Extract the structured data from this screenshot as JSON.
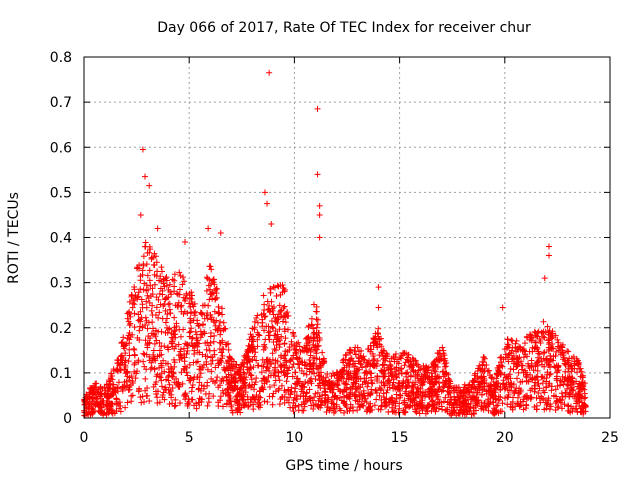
{
  "chart_data": {
    "type": "scatter",
    "title": "Day 066 of 2017, Rate Of TEC Index for receiver chur",
    "xlabel": "GPS time / hours",
    "ylabel": "ROTI / TECUs",
    "xlim": [
      0,
      25
    ],
    "ylim": [
      0,
      0.8
    ],
    "xticks": [
      0,
      5,
      10,
      15,
      20,
      25
    ],
    "yticks": [
      0,
      0.1,
      0.2,
      0.3,
      0.4,
      0.5,
      0.6,
      0.7,
      0.8
    ],
    "xtick_labels": [
      "0",
      "5",
      "10",
      "15",
      "20",
      "25"
    ],
    "ytick_labels": [
      "0",
      "0.1",
      "0.2",
      "0.3",
      "0.4",
      "0.5",
      "0.6",
      "0.7",
      "0.8"
    ],
    "grid": true,
    "marker": "+",
    "color": "#ff0000",
    "series": [
      {
        "name": "ROTI",
        "notable_points": [
          {
            "x": 2.8,
            "y": 0.595
          },
          {
            "x": 2.9,
            "y": 0.535
          },
          {
            "x": 3.1,
            "y": 0.515
          },
          {
            "x": 2.7,
            "y": 0.45
          },
          {
            "x": 3.5,
            "y": 0.42
          },
          {
            "x": 4.8,
            "y": 0.39
          },
          {
            "x": 5.9,
            "y": 0.42
          },
          {
            "x": 6.5,
            "y": 0.41
          },
          {
            "x": 8.6,
            "y": 0.5
          },
          {
            "x": 8.7,
            "y": 0.475
          },
          {
            "x": 8.8,
            "y": 0.765
          },
          {
            "x": 8.9,
            "y": 0.43
          },
          {
            "x": 11.1,
            "y": 0.685
          },
          {
            "x": 11.1,
            "y": 0.54
          },
          {
            "x": 11.2,
            "y": 0.47
          },
          {
            "x": 11.2,
            "y": 0.45
          },
          {
            "x": 11.2,
            "y": 0.4
          },
          {
            "x": 14.0,
            "y": 0.29
          },
          {
            "x": 14.0,
            "y": 0.245
          },
          {
            "x": 19.9,
            "y": 0.245
          },
          {
            "x": 22.1,
            "y": 0.38
          },
          {
            "x": 22.1,
            "y": 0.36
          },
          {
            "x": 21.9,
            "y": 0.31
          }
        ],
        "envelope": [
          {
            "x": 0.0,
            "y": 0.05
          },
          {
            "x": 0.5,
            "y": 0.08
          },
          {
            "x": 1.0,
            "y": 0.07
          },
          {
            "x": 1.5,
            "y": 0.12
          },
          {
            "x": 2.0,
            "y": 0.22
          },
          {
            "x": 2.5,
            "y": 0.33
          },
          {
            "x": 3.0,
            "y": 0.4
          },
          {
            "x": 3.5,
            "y": 0.38
          },
          {
            "x": 4.0,
            "y": 0.3
          },
          {
            "x": 4.5,
            "y": 0.33
          },
          {
            "x": 5.0,
            "y": 0.3
          },
          {
            "x": 5.5,
            "y": 0.22
          },
          {
            "x": 6.0,
            "y": 0.36
          },
          {
            "x": 6.5,
            "y": 0.26
          },
          {
            "x": 7.0,
            "y": 0.13
          },
          {
            "x": 7.5,
            "y": 0.12
          },
          {
            "x": 8.0,
            "y": 0.2
          },
          {
            "x": 8.5,
            "y": 0.28
          },
          {
            "x": 9.0,
            "y": 0.3
          },
          {
            "x": 9.5,
            "y": 0.3
          },
          {
            "x": 10.0,
            "y": 0.18
          },
          {
            "x": 10.5,
            "y": 0.17
          },
          {
            "x": 11.0,
            "y": 0.27
          },
          {
            "x": 11.5,
            "y": 0.1
          },
          {
            "x": 12.0,
            "y": 0.1
          },
          {
            "x": 12.5,
            "y": 0.15
          },
          {
            "x": 13.0,
            "y": 0.16
          },
          {
            "x": 13.5,
            "y": 0.17
          },
          {
            "x": 14.0,
            "y": 0.2
          },
          {
            "x": 14.5,
            "y": 0.13
          },
          {
            "x": 15.0,
            "y": 0.15
          },
          {
            "x": 15.5,
            "y": 0.14
          },
          {
            "x": 16.0,
            "y": 0.12
          },
          {
            "x": 16.5,
            "y": 0.11
          },
          {
            "x": 17.0,
            "y": 0.17
          },
          {
            "x": 17.5,
            "y": 0.07
          },
          {
            "x": 18.0,
            "y": 0.07
          },
          {
            "x": 18.5,
            "y": 0.09
          },
          {
            "x": 19.0,
            "y": 0.14
          },
          {
            "x": 19.5,
            "y": 0.08
          },
          {
            "x": 20.0,
            "y": 0.18
          },
          {
            "x": 20.5,
            "y": 0.17
          },
          {
            "x": 21.0,
            "y": 0.18
          },
          {
            "x": 21.5,
            "y": 0.2
          },
          {
            "x": 22.0,
            "y": 0.22
          },
          {
            "x": 22.5,
            "y": 0.18
          },
          {
            "x": 23.0,
            "y": 0.15
          },
          {
            "x": 23.5,
            "y": 0.13
          },
          {
            "x": 23.8,
            "y": 0.08
          }
        ]
      }
    ]
  }
}
